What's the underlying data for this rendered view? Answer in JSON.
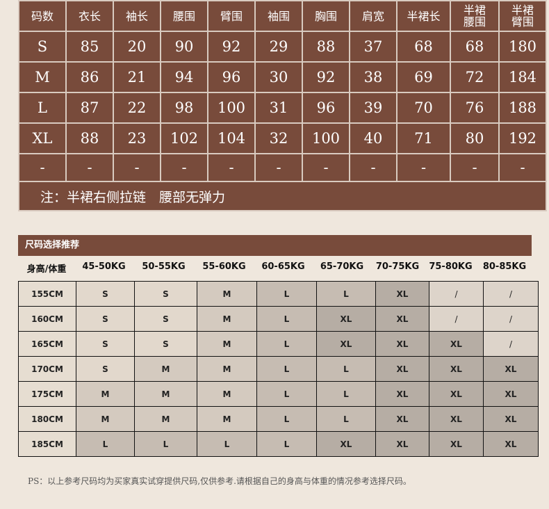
{
  "size_table": {
    "headers": [
      "码数",
      "衣长",
      "袖长",
      "腰围",
      "臂围",
      "袖围",
      "胸围",
      "肩宽",
      "半裙长",
      "半裙\n腰围",
      "半裙\n臂围"
    ],
    "rows": [
      [
        "S",
        "85",
        "20",
        "90",
        "92",
        "29",
        "88",
        "37",
        "68",
        "68",
        "180"
      ],
      [
        "M",
        "86",
        "21",
        "94",
        "96",
        "30",
        "92",
        "38",
        "69",
        "72",
        "184"
      ],
      [
        "L",
        "87",
        "22",
        "98",
        "100",
        "31",
        "96",
        "39",
        "70",
        "76",
        "188"
      ],
      [
        "XL",
        "88",
        "23",
        "102",
        "104",
        "32",
        "100",
        "40",
        "71",
        "80",
        "192"
      ],
      [
        "-",
        "-",
        "-",
        "-",
        "-",
        "-",
        "-",
        "-",
        "-",
        "-",
        "-"
      ]
    ],
    "note": "注：半裙右侧拉链　腰部无弹力"
  },
  "recommend": {
    "title": "尺码选择推荐",
    "corner": "身高/体重",
    "weights": [
      "45-50KG",
      "50-55KG",
      "55-60KG",
      "60-65KG",
      "65-70KG",
      "70-75KG",
      "75-80KG",
      "80-85KG"
    ],
    "rows": [
      {
        "height": "155CM",
        "sizes": [
          "S",
          "S",
          "M",
          "L",
          "L",
          "XL",
          "/",
          "/"
        ]
      },
      {
        "height": "160CM",
        "sizes": [
          "S",
          "S",
          "M",
          "L",
          "XL",
          "XL",
          "/",
          "/"
        ]
      },
      {
        "height": "165CM",
        "sizes": [
          "S",
          "S",
          "M",
          "L",
          "XL",
          "XL",
          "XL",
          "/"
        ]
      },
      {
        "height": "170CM",
        "sizes": [
          "S",
          "M",
          "M",
          "L",
          "L",
          "XL",
          "XL",
          "XL"
        ]
      },
      {
        "height": "175CM",
        "sizes": [
          "M",
          "M",
          "M",
          "L",
          "L",
          "XL",
          "XL",
          "XL"
        ]
      },
      {
        "height": "180CM",
        "sizes": [
          "M",
          "M",
          "M",
          "L",
          "L",
          "XL",
          "XL",
          "XL"
        ]
      },
      {
        "height": "185CM",
        "sizes": [
          "L",
          "L",
          "L",
          "L",
          "XL",
          "XL",
          "XL",
          "XL"
        ]
      }
    ],
    "shade_colors": {
      "S": "#e2d8cc",
      "M": "#d4cabf",
      "L": "#c6bcb2",
      "XL": "#b6ada4",
      "/": "#ddd4ca"
    }
  },
  "ps": "PS：以上参考尺码均为买家真实试穿提供尺码,仅供参考.请根据自己的身高与体重的情况参考选择尺码。"
}
